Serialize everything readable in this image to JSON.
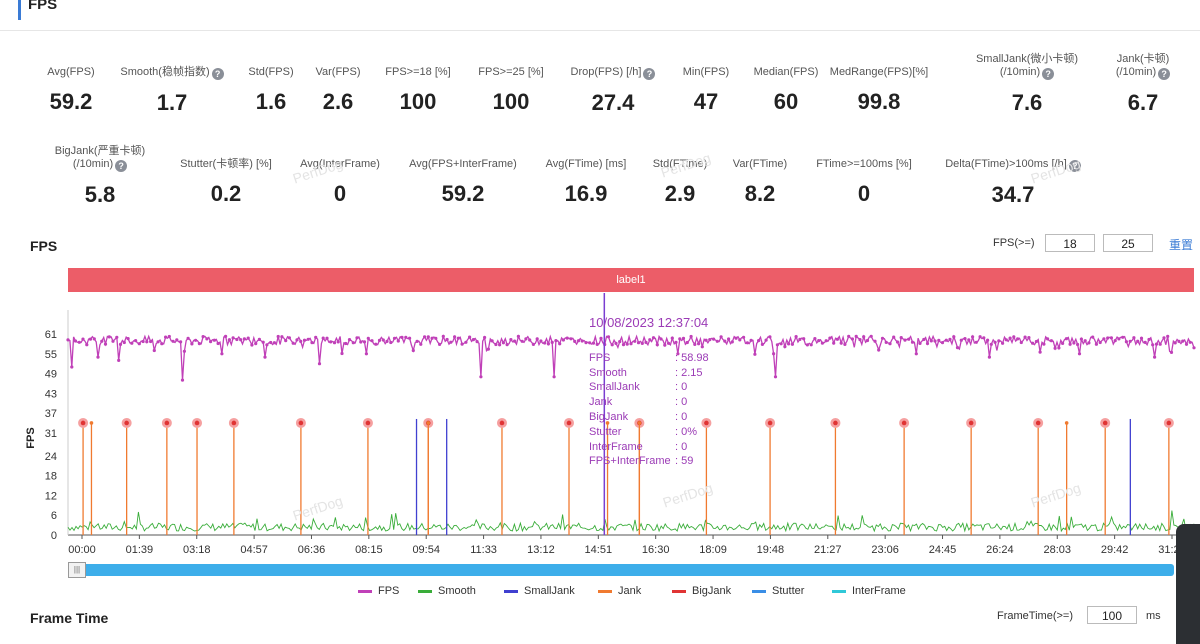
{
  "header": {
    "title": "FPS"
  },
  "stats_row1": [
    {
      "label": "Avg(FPS)",
      "value": "59.2",
      "help": false
    },
    {
      "label": "Smooth(稳帧指数)",
      "value": "1.7",
      "help": true
    },
    {
      "label": "Std(FPS)",
      "value": "1.6",
      "help": false
    },
    {
      "label": "Var(FPS)",
      "value": "2.6",
      "help": false
    },
    {
      "label": "FPS>=18 [%]",
      "value": "100",
      "help": false
    },
    {
      "label": "FPS>=25 [%]",
      "value": "100",
      "help": false
    },
    {
      "label": "Drop(FPS) [/h]",
      "value": "27.4",
      "help": true
    },
    {
      "label": "Min(FPS)",
      "value": "47",
      "help": false
    },
    {
      "label": "Median(FPS)",
      "value": "60",
      "help": false
    },
    {
      "label": "MedRange(FPS)[%]",
      "value": "99.8",
      "help": false
    },
    {
      "label": "SmallJank(微小卡顿)",
      "label2": "(/10min)",
      "value": "7.6",
      "help": true
    },
    {
      "label": "Jank(卡顿)",
      "label2": "(/10min)",
      "value": "6.7",
      "help": true
    }
  ],
  "stats_row2": [
    {
      "label": "BigJank(严重卡顿)",
      "label2": "(/10min)",
      "value": "5.8",
      "help": true
    },
    {
      "label": "Stutter(卡顿率) [%]",
      "value": "0.2",
      "help": false
    },
    {
      "label": "Avg(InterFrame)",
      "value": "0",
      "help": false
    },
    {
      "label": "Avg(FPS+InterFrame)",
      "value": "59.2",
      "help": false
    },
    {
      "label": "Avg(FTime) [ms]",
      "value": "16.9",
      "help": false
    },
    {
      "label": "Std(FTime)",
      "value": "2.9",
      "help": false
    },
    {
      "label": "Var(FTime)",
      "value": "8.2",
      "help": false
    },
    {
      "label": "FTime>=100ms [%]",
      "value": "0",
      "help": false
    },
    {
      "label": "Delta(FTime)>100ms [/h]",
      "value": "34.7",
      "help": true
    }
  ],
  "fps_section": {
    "title": "FPS",
    "threshold_label": "FPS(>=)",
    "threshold_1": "18",
    "threshold_2": "25",
    "reset_label": "重置"
  },
  "label_bar": "label1",
  "watermark": "PerfDog",
  "help_glyph": "?",
  "scroll_handle_glyph": "|||",
  "tooltip": {
    "title": "10/08/2023 12:37:04",
    "rows": [
      {
        "k": "FPS",
        "v": ": 58.98"
      },
      {
        "k": "Smooth",
        "v": ": 2.15"
      },
      {
        "k": "SmallJank",
        "v": ": 0"
      },
      {
        "k": "Jank",
        "v": ": 0"
      },
      {
        "k": "BigJank",
        "v": ": 0"
      },
      {
        "k": "Stutter",
        "v": ": 0%"
      },
      {
        "k": "InterFrame",
        "v": ": 0"
      },
      {
        "k": "FPS+InterFrame",
        "v": ": 59"
      }
    ]
  },
  "frame_time_section": {
    "title": "Frame Time",
    "threshold_label": "FrameTime(>=)",
    "threshold_value": "100",
    "unit": "ms"
  },
  "chart_data": {
    "type": "line",
    "ylabel": "FPS",
    "yticks": [
      0,
      6,
      12,
      18,
      24,
      31,
      37,
      43,
      49,
      55,
      61
    ],
    "ylim": [
      0,
      66
    ],
    "xticks": [
      "00:00",
      "01:39",
      "03:18",
      "04:57",
      "06:36",
      "08:15",
      "09:54",
      "11:33",
      "13:12",
      "14:51",
      "16:30",
      "18:09",
      "19:48",
      "21:27",
      "23:06",
      "24:45",
      "26:24",
      "28:03",
      "29:42",
      "31:21"
    ],
    "xlim_minutes": [
      0,
      33.6
    ],
    "legend": [
      {
        "name": "FPS",
        "color": "#c040b8"
      },
      {
        "name": "Smooth",
        "color": "#3aad3a"
      },
      {
        "name": "SmallJank",
        "color": "#4040d0"
      },
      {
        "name": "Jank",
        "color": "#f07a30"
      },
      {
        "name": "BigJank",
        "color": "#e03434"
      },
      {
        "name": "Stutter",
        "color": "#3a8ee6"
      },
      {
        "name": "InterFrame",
        "color": "#30c8d8"
      }
    ],
    "fps_baseline": 59,
    "fps_drops": [
      {
        "t": 0.1,
        "v": 51
      },
      {
        "t": 0.9,
        "v": 54
      },
      {
        "t": 1.5,
        "v": 53
      },
      {
        "t": 2.6,
        "v": 56
      },
      {
        "t": 3.4,
        "v": 47
      },
      {
        "t": 4.6,
        "v": 55
      },
      {
        "t": 5.9,
        "v": 54
      },
      {
        "t": 7.5,
        "v": 52
      },
      {
        "t": 8.9,
        "v": 55
      },
      {
        "t": 10.3,
        "v": 56
      },
      {
        "t": 12.3,
        "v": 48
      },
      {
        "t": 14.5,
        "v": 48
      },
      {
        "t": 18.2,
        "v": 55
      },
      {
        "t": 21.1,
        "v": 48
      },
      {
        "t": 25.3,
        "v": 55
      },
      {
        "t": 27.5,
        "v": 54
      },
      {
        "t": 30.2,
        "v": 55
      },
      {
        "t": 32.4,
        "v": 54
      }
    ],
    "bigjank_times": [
      0.45,
      1.75,
      2.95,
      3.85,
      4.95,
      6.95,
      8.95,
      10.75,
      12.95,
      14.95,
      17.05,
      19.05,
      20.95,
      22.9,
      24.95,
      26.95,
      28.95,
      30.95,
      32.85
    ],
    "bigjank_value": 34,
    "jank_times": [
      0.7,
      10.75,
      16.1,
      17.05,
      29.8
    ],
    "smalljank": [
      {
        "t": 10.4,
        "v": 34
      },
      {
        "t": 11.3,
        "v": 34
      },
      {
        "t": 31.7,
        "v": 34
      }
    ],
    "cursor_time": "14:51"
  }
}
